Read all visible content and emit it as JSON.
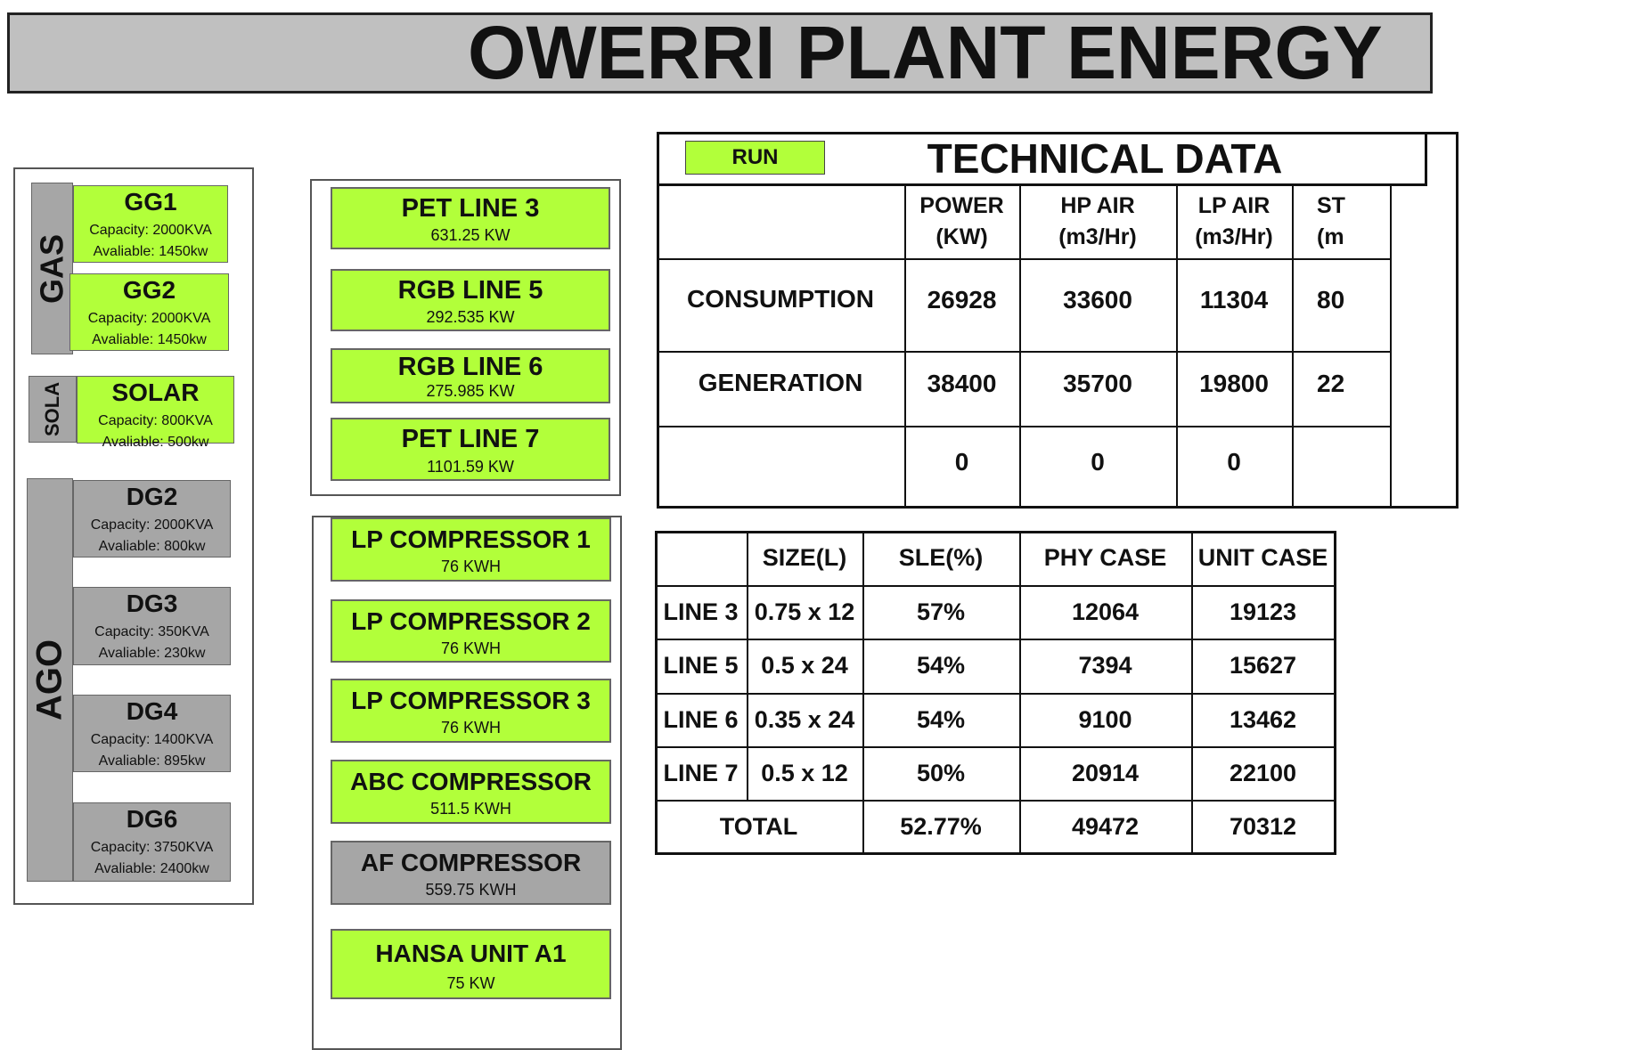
{
  "header": {
    "title": "OWERRI PLANT ENERGY"
  },
  "generators": {
    "groups": [
      {
        "label": "GAS",
        "units": [
          {
            "name": "GG1",
            "capacity": "Capacity: 2000KVA",
            "available": "Avaliable: 1450kw"
          },
          {
            "name": "GG2",
            "capacity": "Capacity: 2000KVA",
            "available": "Avaliable: 1450kw"
          }
        ]
      },
      {
        "label": "SOLA",
        "units": [
          {
            "name": "SOLAR",
            "capacity": "Capacity: 800KVA",
            "available": "Avaliable: 500kw"
          }
        ]
      },
      {
        "label": "AGO",
        "units": [
          {
            "name": "DG2",
            "capacity": "Capacity: 2000KVA",
            "available": "Avaliable: 800kw"
          },
          {
            "name": "DG3",
            "capacity": "Capacity: 350KVA",
            "available": "Avaliable: 230kw"
          },
          {
            "name": "DG4",
            "capacity": "Capacity: 1400KVA",
            "available": "Avaliable: 895kw"
          },
          {
            "name": "DG6",
            "capacity": "Capacity: 3750KVA",
            "available": "Avaliable: 2400kw"
          }
        ]
      }
    ]
  },
  "loads": {
    "production_lines": [
      {
        "name": "PET LINE 3",
        "load": "631.25 KW"
      },
      {
        "name": "RGB LINE 5",
        "load": "292.535 KW"
      },
      {
        "name": "RGB LINE 6",
        "load": "275.985 KW"
      },
      {
        "name": "PET LINE 7",
        "load": "1101.59 KW"
      }
    ],
    "compressors": [
      {
        "name": "LP COMPRESSOR 1",
        "load": "76 KWH"
      },
      {
        "name": "LP COMPRESSOR 2",
        "load": "76 KWH"
      },
      {
        "name": "LP COMPRESSOR 3",
        "load": "76 KWH"
      },
      {
        "name": "ABC COMPRESSOR",
        "load": "511.5 KWH"
      },
      {
        "name": "AF COMPRESSOR",
        "load": "559.75 KWH"
      },
      {
        "name": "HANSA UNIT A1",
        "load": "75 KW"
      }
    ]
  },
  "technical_data": {
    "status": "RUN",
    "title": "TECHNICAL DATA",
    "columns": [
      [
        "POWER",
        "(KW)"
      ],
      [
        "HP AIR",
        "(m3/Hr)"
      ],
      [
        "LP AIR",
        "(m3/Hr)"
      ],
      [
        "ST",
        "(m"
      ]
    ],
    "rows": [
      {
        "label": "CONSUMPTION",
        "values": [
          26928,
          33600,
          11304,
          "80"
        ]
      },
      {
        "label": "GENERATION",
        "values": [
          38400,
          35700,
          19800,
          "22"
        ]
      },
      {
        "values": [
          0,
          0,
          0
        ]
      }
    ]
  },
  "production": {
    "columns": [
      "SIZE(L)",
      "SLE(%)",
      "PHY CASE",
      "UNIT CASE"
    ],
    "rows": [
      {
        "label": "LINE 3",
        "size": "0.75 x 12",
        "sle": "57%",
        "phy": 12064,
        "unit": 19123
      },
      {
        "label": "LINE 5",
        "size": "0.5 x 24",
        "sle": "54%",
        "phy": 7394,
        "unit": 15627
      },
      {
        "label": "LINE 6",
        "size": "0.35 x 24",
        "sle": "54%",
        "phy": 9100,
        "unit": 13462
      },
      {
        "label": "LINE 7",
        "size": "0.5 x 12",
        "sle": "50%",
        "phy": 20914,
        "unit": 22100
      }
    ],
    "total": {
      "label": "TOTAL",
      "sle": "52.77%",
      "phy": 49472,
      "unit": 70312
    }
  }
}
